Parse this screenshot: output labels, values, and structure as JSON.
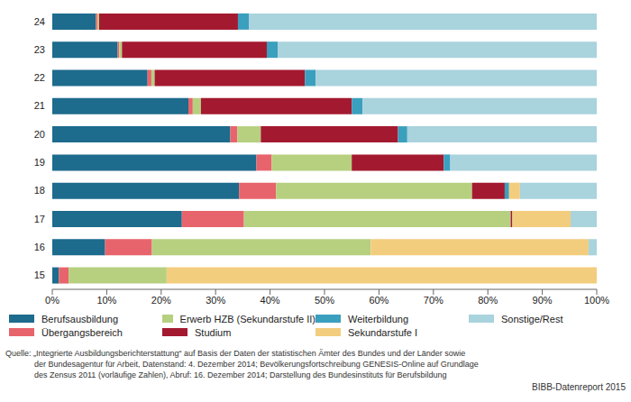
{
  "chart_data": {
    "type": "bar",
    "orientation": "horizontal",
    "stacked": true,
    "grid": false,
    "legend": "bottom",
    "categories": [
      "24",
      "23",
      "22",
      "21",
      "20",
      "19",
      "18",
      "17",
      "16",
      "15"
    ],
    "xlim": [
      0,
      100
    ],
    "xticks": [
      {
        "value": 0,
        "label": "0%"
      },
      {
        "value": 10,
        "label": "10%"
      },
      {
        "value": 20,
        "label": "20%"
      },
      {
        "value": 30,
        "label": "30%"
      },
      {
        "value": 40,
        "label": "40%"
      },
      {
        "value": 50,
        "label": "50%"
      },
      {
        "value": 60,
        "label": "60%"
      },
      {
        "value": 70,
        "label": "70%"
      },
      {
        "value": 80,
        "label": "80%"
      },
      {
        "value": 90,
        "label": "90%"
      },
      {
        "value": 100,
        "label": "100%"
      }
    ],
    "series": [
      {
        "name": "Berufsausbildung",
        "color": "#1d6b8d",
        "values": [
          8,
          12,
          17.5,
          25,
          32.7,
          37.5,
          34.3,
          23.8,
          9.7,
          1.2
        ]
      },
      {
        "name": "Übergangsbereich",
        "color": "#e8646c",
        "values": [
          0.3,
          0.3,
          0.7,
          0.8,
          1.3,
          2.8,
          6.8,
          11.4,
          8.6,
          1.8
        ]
      },
      {
        "name": "Erwerb HZB (Sekundarstufe II)",
        "color": "#b6d080",
        "values": [
          0.3,
          0.5,
          0.6,
          1.5,
          4.3,
          14.7,
          36,
          49,
          40.2,
          18
        ]
      },
      {
        "name": "Studium",
        "color": "#a31a30",
        "values": [
          25.5,
          26.6,
          27.6,
          27.7,
          25.2,
          16.9,
          6,
          0.3,
          0,
          0
        ]
      },
      {
        "name": "Weiterbildung",
        "color": "#3b9fbe",
        "values": [
          2,
          2,
          2,
          2,
          1.7,
          1.2,
          0.8,
          0,
          0,
          0
        ]
      },
      {
        "name": "Sekundarstufe I",
        "color": "#f3cd7e",
        "values": [
          0,
          0,
          0,
          0,
          0,
          0,
          2,
          10.7,
          40,
          79
        ]
      },
      {
        "name": "Sonstige/Rest",
        "color": "#a9d3dd",
        "values": [
          63.9,
          58.6,
          51.6,
          43,
          34.8,
          26.9,
          14.1,
          4.8,
          1.5,
          0
        ]
      }
    ]
  },
  "source": [
    "Quelle: „Integrierte Ausbildungsberichterstattung“ auf Basis der Daten der statistischen Ämter des Bundes und der Länder sowie",
    "der Bundesagentur für Arbeit, Datenstand: 4. Dezember 2014; Bevölkerungsfortschreibung GENESIS-Online auf Grundlage",
    "des Zensus 2011 (vorläufige Zahlen), Abruf: 16. Dezember 2014; Darstellung des Bundesinstituts für Berufsbildung"
  ],
  "publisher": "BIBB-Datenreport 2015"
}
